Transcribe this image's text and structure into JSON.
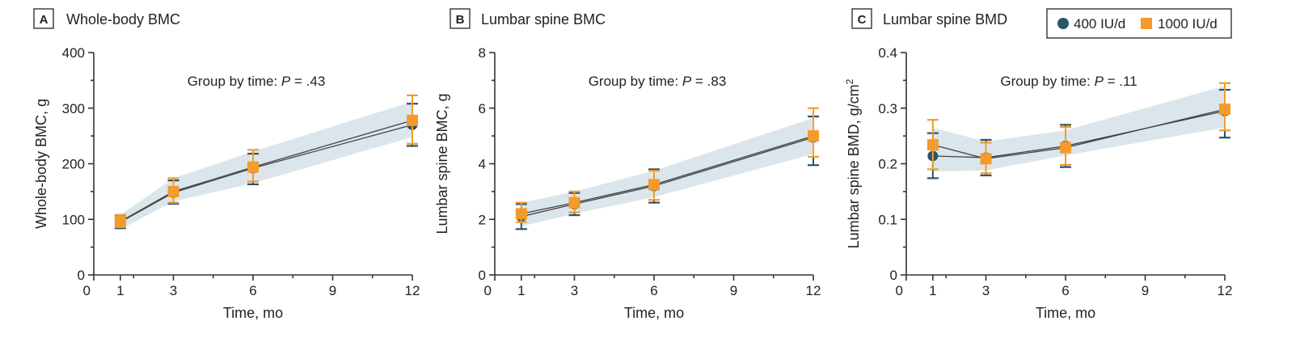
{
  "colors": {
    "series_400": "#2c5468",
    "series_1000": "#f39b2b",
    "band": "#dbe6ec"
  },
  "legend": [
    {
      "label": "400 IU/d",
      "marker": "circle"
    },
    {
      "label": "1000 IU/d",
      "marker": "square"
    }
  ],
  "chart_data": [
    {
      "type": "line",
      "letter": "A",
      "title": "Whole-body BMC",
      "xlabel": "Time, mo",
      "ylabel": "Whole-body BMC, g",
      "xlim": [
        0,
        12
      ],
      "ylim": [
        0,
        400
      ],
      "xticks": [
        0,
        1,
        3,
        6,
        9,
        12
      ],
      "yticks": [
        0,
        100,
        200,
        300,
        400
      ],
      "ytick_labels": [
        "0",
        "100",
        "200",
        "300",
        "400"
      ],
      "annotation": {
        "prefix": "Group by time: ",
        "p": "P",
        "suffix": " = .43"
      },
      "x": [
        1,
        3,
        6,
        12
      ],
      "band": {
        "lower": [
          82,
          132,
          165,
          248
        ],
        "upper": [
          108,
          174,
          222,
          312
        ]
      },
      "series": [
        {
          "name": "400 IU/d",
          "values": [
            95,
            148,
            192,
            270
          ],
          "err_low": [
            84,
            128,
            163,
            232
          ],
          "err_high": [
            106,
            170,
            218,
            308
          ]
        },
        {
          "name": "1000 IU/d",
          "values": [
            96,
            150,
            194,
            278
          ],
          "err_low": [
            86,
            130,
            168,
            236
          ],
          "err_high": [
            108,
            174,
            225,
            323
          ]
        }
      ]
    },
    {
      "type": "line",
      "letter": "B",
      "title": "Lumbar spine BMC",
      "xlabel": "Time, mo",
      "ylabel": "Lumbar spine BMC, g",
      "xlim": [
        0,
        12
      ],
      "ylim": [
        0,
        8
      ],
      "xticks": [
        0,
        1,
        3,
        6,
        9,
        12
      ],
      "yticks": [
        0,
        2,
        4,
        6,
        8
      ],
      "ytick_labels": [
        "0",
        "2",
        "4",
        "6",
        "8"
      ],
      "annotation": {
        "prefix": "Group by time: ",
        "p": "P",
        "suffix": " = .83"
      },
      "x": [
        1,
        3,
        6,
        12
      ],
      "band": {
        "lower": [
          1.75,
          2.2,
          2.8,
          4.35
        ],
        "upper": [
          2.6,
          3.0,
          3.75,
          5.65
        ]
      },
      "series": [
        {
          "name": "400 IU/d",
          "values": [
            2.1,
            2.55,
            3.2,
            4.95
          ],
          "err_low": [
            1.65,
            2.15,
            2.6,
            3.95
          ],
          "err_high": [
            2.55,
            2.95,
            3.8,
            5.7
          ]
        },
        {
          "name": "1000 IU/d",
          "values": [
            2.2,
            2.6,
            3.25,
            5.0
          ],
          "err_low": [
            1.9,
            2.25,
            2.7,
            4.25
          ],
          "err_high": [
            2.6,
            3.0,
            3.75,
            6.0
          ]
        }
      ]
    },
    {
      "type": "line",
      "letter": "C",
      "title": "Lumbar spine BMD",
      "xlabel": "Time, mo",
      "ylabel": "Lumbar spine BMD, g/cm",
      "ylabel_sup": "2",
      "xlim": [
        0,
        12
      ],
      "ylim": [
        0,
        0.4
      ],
      "xticks": [
        0,
        1,
        3,
        6,
        9,
        12
      ],
      "yticks": [
        0,
        0.1,
        0.2,
        0.3,
        0.4
      ],
      "ytick_labels": [
        "0",
        "0.1",
        "0.2",
        "0.3",
        "0.4"
      ],
      "annotation": {
        "prefix": "Group by time: ",
        "p": "P",
        "suffix": " = .11"
      },
      "x": [
        1,
        3,
        6,
        12
      ],
      "band": {
        "lower": [
          0.186,
          0.188,
          0.215,
          0.265
        ],
        "upper": [
          0.265,
          0.24,
          0.26,
          0.34
        ]
      },
      "series": [
        {
          "name": "400 IU/d",
          "values": [
            0.214,
            0.211,
            0.232,
            0.295
          ],
          "err_low": [
            0.174,
            0.179,
            0.194,
            0.247
          ],
          "err_high": [
            0.255,
            0.243,
            0.27,
            0.333
          ]
        },
        {
          "name": "1000 IU/d",
          "values": [
            0.234,
            0.209,
            0.229,
            0.298
          ],
          "err_low": [
            0.19,
            0.183,
            0.198,
            0.26
          ],
          "err_high": [
            0.279,
            0.238,
            0.266,
            0.345
          ]
        }
      ]
    }
  ]
}
